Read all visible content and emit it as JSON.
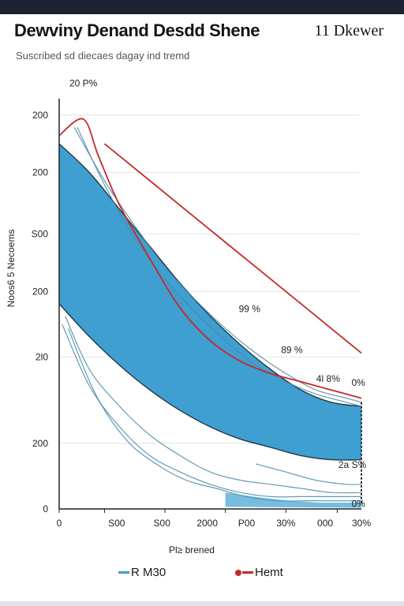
{
  "header": {
    "title": "Dewviny Denand Desdd Shene",
    "corner_text": "11 Dkewer",
    "subtitle": "Suscribed sd diecaes dagay ind tremd"
  },
  "colors": {
    "band": "#3f9fd0",
    "band_edge": "#263747",
    "red_line": "#c42a2a",
    "thin_line": "#4a89a9",
    "grid": "#e4e4e4",
    "axis": "#222222"
  },
  "chart_data": {
    "type": "area",
    "title": "Dewviny Denand Desdd Shene",
    "subtitle": "Suscribed sd diecaes dagay ind tremd",
    "xlabel": "Pl≥ brened",
    "ylabel": "Noos6 5 Necoems",
    "x_tick_labels": [
      "0",
      "S00",
      "S00",
      "2000",
      "P00",
      "30%",
      "000",
      "30%"
    ],
    "y_tick_labels": [
      "200",
      "200",
      "S00",
      "200",
      "2l0",
      "200",
      "0"
    ],
    "grid": true,
    "legend_position": "bottom",
    "legend": [
      "R M30",
      "Hemt"
    ],
    "annotations": [
      "20 P%",
      "99 %",
      "89 %",
      "4l 8%",
      "0%",
      "2a S%",
      "0%"
    ],
    "note": "Tick labels in the original are non-monotonic; the series below use position units of 0-100 for both axes, read relative to the axis box.",
    "series": [
      {
        "name": "R M30",
        "role": "band_upper",
        "x": [
          0,
          10,
          20,
          30,
          40,
          50,
          60,
          70,
          80,
          90,
          100
        ],
        "y": [
          89,
          82,
          73,
          64,
          55,
          47,
          40,
          34,
          29,
          26,
          25
        ]
      },
      {
        "name": "R M30",
        "role": "band_lower",
        "x": [
          0,
          10,
          20,
          30,
          40,
          50,
          60,
          70,
          80,
          90,
          100
        ],
        "y": [
          50,
          42,
          35,
          29,
          24,
          20,
          17,
          15,
          13,
          12,
          12
        ]
      },
      {
        "name": "Hemt",
        "role": "line_upper",
        "x": [
          0,
          8,
          13,
          20,
          30,
          40,
          50,
          60,
          70,
          80,
          90,
          100
        ],
        "y": [
          91,
          95,
          86,
          74,
          61,
          49,
          41,
          36,
          33,
          31,
          29,
          27
        ]
      },
      {
        "name": "Hemt",
        "role": "line_trend",
        "x": [
          15,
          25,
          35,
          45,
          55,
          65,
          75,
          85,
          95,
          100
        ],
        "y": [
          89,
          83,
          77,
          71,
          65,
          59,
          53,
          47,
          41,
          38
        ]
      },
      {
        "role": "thin_upper_1",
        "x": [
          5,
          15,
          25,
          35,
          45,
          55,
          65,
          75,
          85,
          95,
          100
        ],
        "y": [
          93,
          80,
          69,
          59,
          51,
          44,
          38,
          33,
          29,
          27,
          26
        ]
      },
      {
        "role": "thin_upper_2",
        "x": [
          6,
          15,
          25,
          35,
          45,
          55,
          65,
          75,
          85,
          95,
          100
        ],
        "y": [
          93,
          79,
          66,
          56,
          48,
          41,
          35,
          31,
          28,
          26,
          25
        ]
      },
      {
        "role": "thin_lower_1",
        "x": [
          2,
          10,
          20,
          30,
          40,
          50,
          60,
          70,
          80,
          90,
          100
        ],
        "y": [
          47,
          34,
          25,
          18,
          13,
          9,
          7,
          6,
          5,
          4,
          4
        ]
      },
      {
        "role": "thin_lower_2",
        "x": [
          1,
          10,
          20,
          30,
          40,
          50,
          60,
          70,
          80,
          90,
          100
        ],
        "y": [
          45,
          30,
          20,
          13,
          9,
          6,
          4,
          3,
          3,
          3,
          3
        ]
      },
      {
        "role": "thin_lower_3",
        "x": [
          3,
          12,
          22,
          32,
          42,
          52,
          62,
          72,
          82,
          92,
          100
        ],
        "y": [
          44,
          28,
          17,
          11,
          7,
          5,
          3,
          2,
          2,
          2,
          2
        ]
      },
      {
        "role": "thin_lower_4",
        "x": [
          65,
          75,
          85,
          95,
          100
        ],
        "y": [
          11,
          9,
          7,
          6,
          6
        ]
      }
    ]
  }
}
